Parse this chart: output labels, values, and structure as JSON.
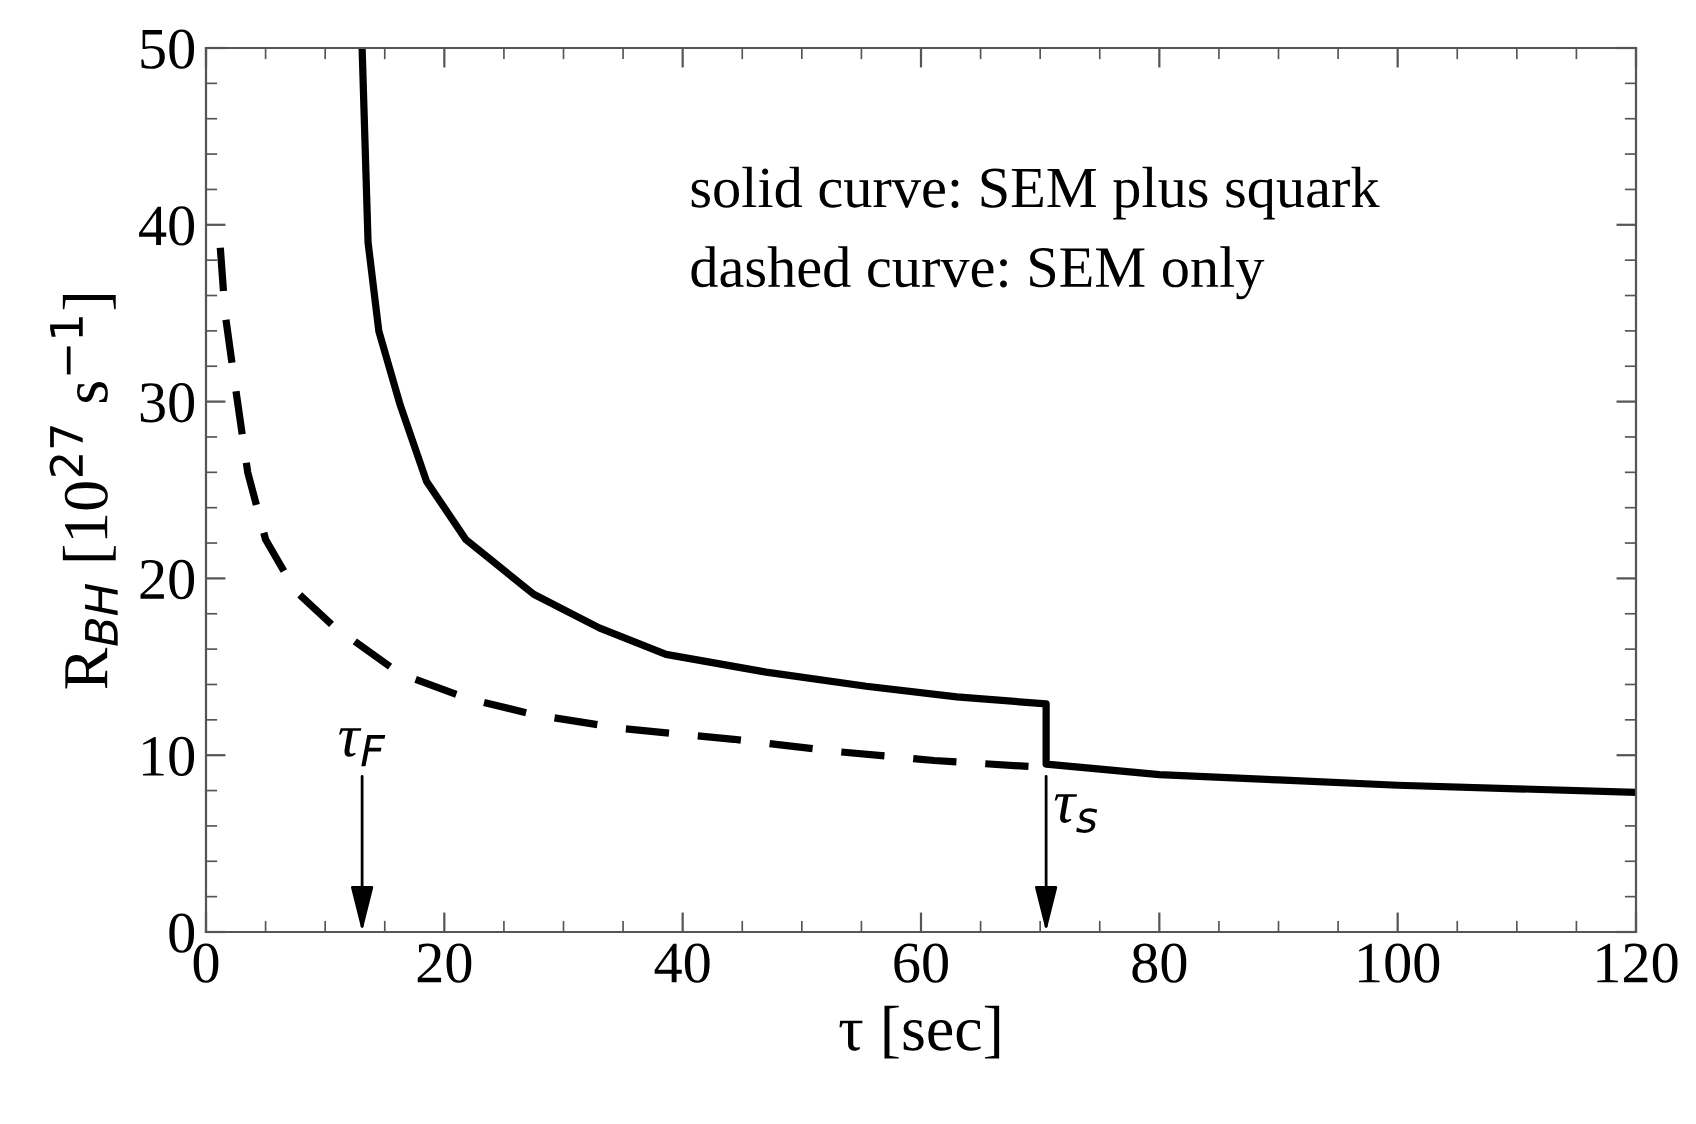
{
  "chart_data": {
    "type": "line",
    "xlabel": "τ [sec]",
    "ylabel": "R$_{BH}$ [10$^{27}$ s$^{−1}$]",
    "xlim": [
      0,
      120
    ],
    "xticks": [
      0,
      20,
      40,
      60,
      80,
      100,
      120
    ],
    "ylim": [
      0,
      50
    ],
    "yticks": [
      0,
      10,
      20,
      30,
      40,
      50
    ],
    "grid": false,
    "marker": "none",
    "series": [
      {
        "color": "#000000",
        "line_style": "solid",
        "x": [
          13.1,
          13.6,
          14.5,
          16.3,
          18.5,
          21.8,
          27.5,
          33,
          38.6,
          47,
          55.4,
          63,
          70.5,
          70.5,
          80,
          90,
          100,
          110,
          120
        ],
        "values": [
          50,
          39,
          34,
          29.8,
          25.5,
          22.2,
          19.1,
          17.2,
          15.7,
          14.7,
          13.9,
          13.3,
          12.9,
          9.5,
          8.9,
          8.6,
          8.3,
          8.1,
          7.9
        ]
      },
      {
        "color": "#000000",
        "line_style": "dashed",
        "x": [
          1.2,
          1.6,
          2.3,
          3.5,
          5,
          7.5,
          10.7,
          16.3,
          22,
          27.5,
          35,
          44.3,
          53,
          61.1,
          70.5
        ],
        "values": [
          38.7,
          35,
          31.6,
          26,
          22.2,
          19.3,
          17.3,
          14.6,
          13.2,
          12.3,
          11.5,
          10.9,
          10.2,
          9.7,
          9.3
        ]
      }
    ],
    "annotations": [
      "solid curve: SEM plus squark",
      "dashed curve: SEM only",
      "τ$_{F}$",
      "τ$_{s}$"
    ]
  }
}
